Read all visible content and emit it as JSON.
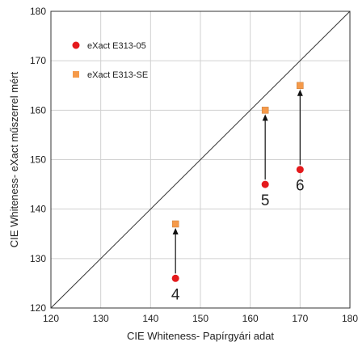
{
  "chart_data": {
    "type": "scatter",
    "xlabel": "CIE Whiteness- Papírgyári adat",
    "ylabel": "CIE Whiteness- eXact műszerrel mért",
    "xlim": [
      120,
      180
    ],
    "ylim": [
      120,
      180
    ],
    "x_ticks": [
      "120",
      "130",
      "140",
      "150",
      "160",
      "170",
      "180"
    ],
    "y_ticks": [
      "120",
      "130",
      "140",
      "150",
      "160",
      "170",
      "180"
    ],
    "grid": true,
    "diagonal_line": true,
    "legend_position": "top-left",
    "series": [
      {
        "name": "eXact E313-05",
        "marker": "circle",
        "color": "#e41a1c",
        "points": [
          {
            "x": 145,
            "y": 126
          },
          {
            "x": 163,
            "y": 145
          },
          {
            "x": 170,
            "y": 148
          }
        ]
      },
      {
        "name": "eXact E313-SE",
        "marker": "square",
        "color": "#f59a4a",
        "points": [
          {
            "x": 145,
            "y": 137
          },
          {
            "x": 163,
            "y": 160
          },
          {
            "x": 170,
            "y": 165
          }
        ]
      }
    ],
    "arrows": [
      {
        "x": 145,
        "from_y": 126,
        "to_y": 137
      },
      {
        "x": 163,
        "from_y": 145,
        "to_y": 160
      },
      {
        "x": 170,
        "from_y": 148,
        "to_y": 165
      }
    ],
    "annotations": [
      {
        "text": "4",
        "x": 145,
        "y": 126
      },
      {
        "text": "5",
        "x": 163,
        "y": 145
      },
      {
        "text": "6",
        "x": 170,
        "y": 148
      }
    ]
  }
}
